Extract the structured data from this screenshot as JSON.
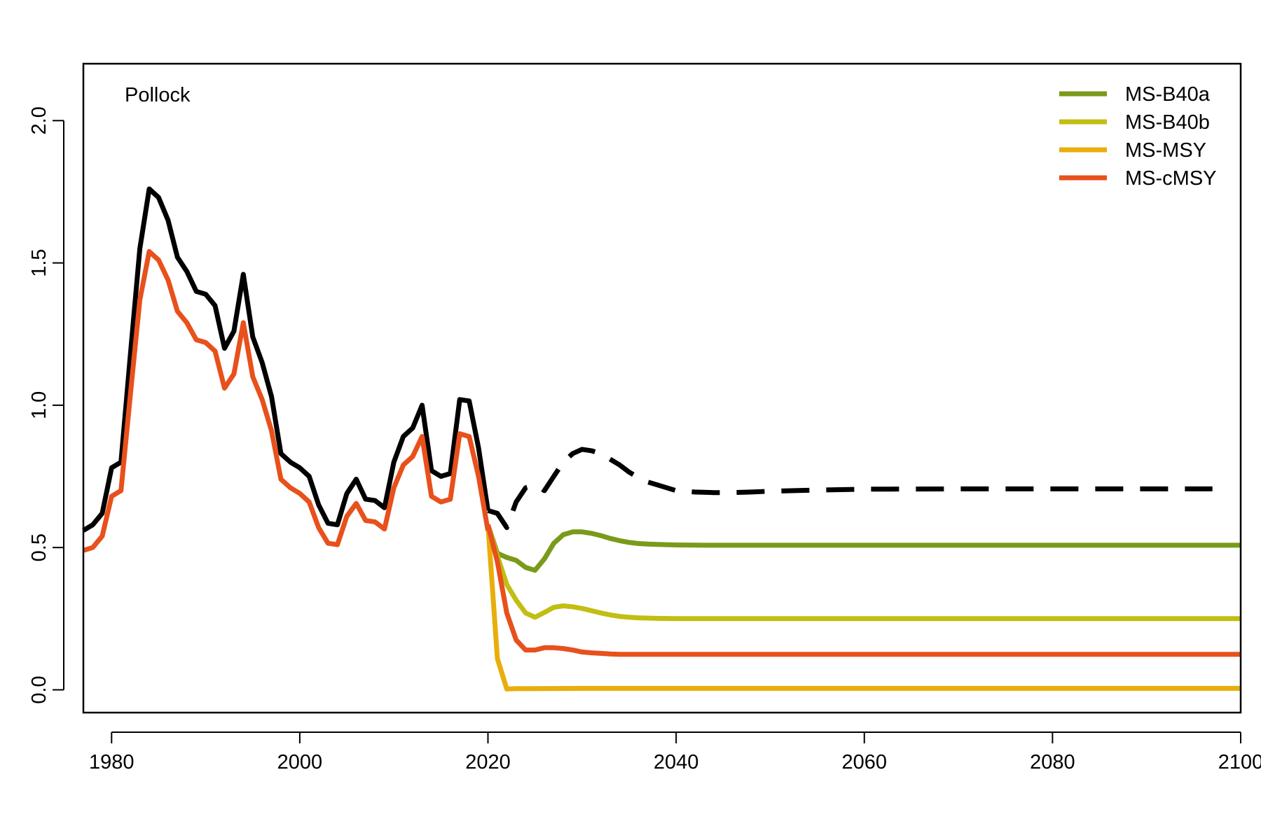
{
  "chart_data": {
    "type": "line",
    "title": "Pollock",
    "xlabel": "",
    "ylabel": "",
    "xlim": [
      1977,
      2100
    ],
    "ylim": [
      -0.08,
      2.2
    ],
    "xticks": [
      1980,
      2000,
      2020,
      2040,
      2060,
      2080,
      2100
    ],
    "yticks": [
      0.0,
      0.5,
      1.0,
      1.5,
      2.0
    ],
    "xtick_labels": [
      "1980",
      "2000",
      "2020",
      "2040",
      "2060",
      "2080",
      "2100"
    ],
    "ytick_labels": [
      "0.0",
      "0.5",
      "1.0",
      "1.5",
      "2.0"
    ],
    "grid": false,
    "legend_position": "top-right",
    "legend_entries": [
      "MS-B40a",
      "MS-B40b",
      "MS-MSY",
      "MS-cMSY"
    ],
    "historical": [
      {
        "style": "solid",
        "color": "#000000",
        "x": [
          1977,
          1978,
          1979,
          1980,
          1981,
          1982,
          1983,
          1984,
          1985,
          1986,
          1987,
          1988,
          1989,
          1990,
          1991,
          1992,
          1993,
          1994,
          1995,
          1996,
          1997,
          1998,
          1999,
          2000,
          2001,
          2002,
          2003,
          2004,
          2005,
          2006,
          2007,
          2008,
          2009,
          2010,
          2011,
          2012,
          2013,
          2014,
          2015,
          2016,
          2017,
          2018,
          2019,
          2020
        ],
        "y": [
          0.56,
          0.58,
          0.62,
          0.78,
          0.8,
          1.18,
          1.55,
          1.76,
          1.73,
          1.65,
          1.52,
          1.47,
          1.4,
          1.39,
          1.35,
          1.2,
          1.26,
          1.46,
          1.24,
          1.15,
          1.03,
          0.83,
          0.8,
          0.78,
          0.75,
          0.65,
          0.585,
          0.58,
          0.69,
          0.74,
          0.67,
          0.665,
          0.64,
          0.8,
          0.89,
          0.92,
          1.0,
          0.77,
          0.75,
          0.76,
          1.02,
          1.015,
          0.85,
          0.63
        ]
      },
      {
        "style": "solid",
        "color": "#E8501C",
        "x": [
          1977,
          1978,
          1979,
          1980,
          1981,
          1982,
          1983,
          1984,
          1985,
          1986,
          1987,
          1988,
          1989,
          1990,
          1991,
          1992,
          1993,
          1994,
          1995,
          1996,
          1997,
          1998,
          1999,
          2000,
          2001,
          2002,
          2003,
          2004,
          2005,
          2006,
          2007,
          2008,
          2009,
          2010,
          2011,
          2012,
          2013,
          2014,
          2015,
          2016,
          2017,
          2018,
          2019,
          2020
        ],
        "y": [
          0.49,
          0.5,
          0.54,
          0.68,
          0.7,
          1.04,
          1.37,
          1.54,
          1.51,
          1.44,
          1.33,
          1.29,
          1.23,
          1.22,
          1.19,
          1.06,
          1.11,
          1.29,
          1.1,
          1.02,
          0.91,
          0.74,
          0.71,
          0.69,
          0.66,
          0.57,
          0.515,
          0.51,
          0.61,
          0.655,
          0.595,
          0.59,
          0.565,
          0.71,
          0.79,
          0.82,
          0.89,
          0.68,
          0.66,
          0.67,
          0.9,
          0.89,
          0.75,
          0.56
        ]
      },
      {
        "style": "dashed",
        "color": "#000000",
        "x": [
          2020,
          2021,
          2022,
          2023,
          2024,
          2025,
          2026,
          2027,
          2028,
          2029,
          2030,
          2031,
          2032,
          2033,
          2034,
          2035,
          2036,
          2037,
          2038,
          2039,
          2040,
          2042,
          2044,
          2046,
          2048,
          2050,
          2055,
          2060,
          2070,
          2080,
          2090,
          2097
        ],
        "y": [
          0.63,
          0.62,
          0.57,
          0.66,
          0.71,
          0.72,
          0.7,
          0.75,
          0.8,
          0.83,
          0.845,
          0.84,
          0.83,
          0.81,
          0.79,
          0.765,
          0.745,
          0.73,
          0.72,
          0.71,
          0.7,
          0.695,
          0.693,
          0.693,
          0.695,
          0.698,
          0.702,
          0.705,
          0.706,
          0.706,
          0.706,
          0.706
        ]
      }
    ],
    "series": [
      {
        "name": "MS-B40a",
        "color": "#7A9A1A",
        "x": [
          2020,
          2021,
          2022,
          2023,
          2024,
          2025,
          2026,
          2027,
          2028,
          2029,
          2030,
          2031,
          2032,
          2033,
          2034,
          2035,
          2036,
          2037,
          2038,
          2040,
          2043,
          2050,
          2100
        ],
        "y": [
          0.58,
          0.48,
          0.465,
          0.455,
          0.43,
          0.42,
          0.46,
          0.515,
          0.545,
          0.555,
          0.555,
          0.55,
          0.542,
          0.532,
          0.524,
          0.518,
          0.514,
          0.512,
          0.511,
          0.509,
          0.508,
          0.508,
          0.508
        ]
      },
      {
        "name": "MS-B40b",
        "color": "#C2BE12",
        "x": [
          2020,
          2021,
          2022,
          2023,
          2024,
          2025,
          2026,
          2027,
          2028,
          2029,
          2030,
          2031,
          2032,
          2033,
          2034,
          2035,
          2036,
          2037,
          2038,
          2040,
          2050,
          2100
        ],
        "y": [
          0.58,
          0.47,
          0.37,
          0.315,
          0.27,
          0.255,
          0.272,
          0.29,
          0.295,
          0.292,
          0.286,
          0.278,
          0.27,
          0.263,
          0.258,
          0.255,
          0.253,
          0.252,
          0.251,
          0.25,
          0.25,
          0.25
        ]
      },
      {
        "name": "MS-MSY",
        "color": "#E8AE0C",
        "x": [
          2020,
          2021,
          2022,
          2023,
          2030,
          2050,
          2100
        ],
        "y": [
          0.58,
          0.11,
          0.003,
          0.004,
          0.005,
          0.005,
          0.005
        ]
      },
      {
        "name": "MS-cMSY",
        "color": "#E8501C",
        "x": [
          2020,
          2021,
          2022,
          2023,
          2024,
          2025,
          2026,
          2027,
          2028,
          2029,
          2030,
          2031,
          2032,
          2033,
          2034,
          2035,
          2040,
          2050,
          2100
        ],
        "y": [
          0.58,
          0.45,
          0.27,
          0.175,
          0.14,
          0.14,
          0.148,
          0.148,
          0.145,
          0.14,
          0.133,
          0.13,
          0.128,
          0.126,
          0.125,
          0.125,
          0.125,
          0.125,
          0.125
        ]
      }
    ]
  }
}
